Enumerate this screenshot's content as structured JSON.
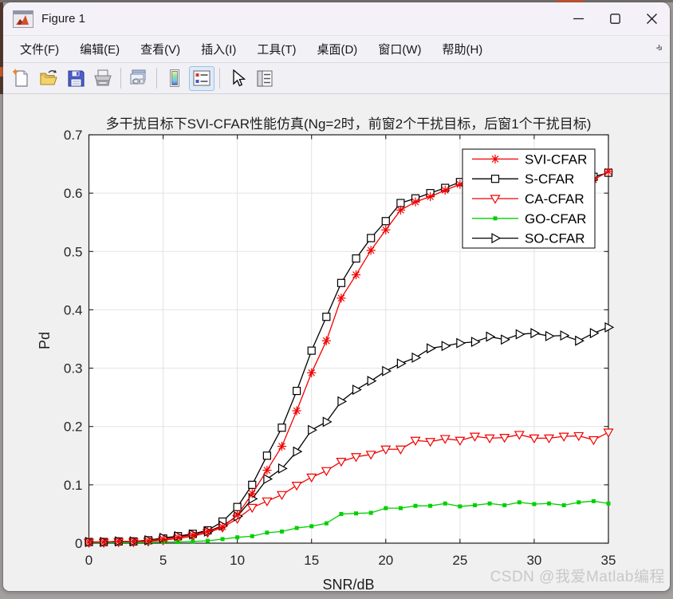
{
  "window": {
    "title": "Figure 1",
    "controls": [
      {
        "name": "minimize"
      },
      {
        "name": "maximize"
      },
      {
        "name": "close"
      }
    ]
  },
  "menu": {
    "items": [
      {
        "label": "文件(F)"
      },
      {
        "label": "编辑(E)"
      },
      {
        "label": "查看(V)"
      },
      {
        "label": "插入(I)"
      },
      {
        "label": "工具(T)"
      },
      {
        "label": "桌面(D)"
      },
      {
        "label": "窗口(W)"
      },
      {
        "label": "帮助(H)"
      }
    ],
    "overflow_icon": "»"
  },
  "toolbar": {
    "icons": [
      "new-figure",
      "open-file",
      "save-figure",
      "print-figure",
      "link-plot",
      "insert-colorbar",
      "insert-legend",
      "edit-plot",
      "property-inspector"
    ],
    "active_icon": "insert-legend"
  },
  "figure": {
    "watermark": "CSDN @我爱Matlab编程"
  },
  "chart_data": {
    "type": "line",
    "title": "多干扰目标下SVI-CFAR性能仿真(Ng=2时，前窗2个干扰目标，后窗1个干扰目标)",
    "xlabel": "SNR/dB",
    "ylabel": "Pd",
    "xlim": [
      0,
      35
    ],
    "ylim": [
      0,
      0.7
    ],
    "xticks": [
      0,
      5,
      10,
      15,
      20,
      25,
      30,
      35
    ],
    "yticks": [
      0,
      0.1,
      0.2,
      0.3,
      0.4,
      0.5,
      0.6,
      0.7
    ],
    "grid": true,
    "legend_position": "top-right-inside",
    "x": [
      0,
      1,
      2,
      3,
      4,
      5,
      6,
      7,
      8,
      9,
      10,
      11,
      12,
      13,
      14,
      15,
      16,
      17,
      18,
      19,
      20,
      21,
      22,
      23,
      24,
      25,
      26,
      27,
      28,
      29,
      30,
      31,
      32,
      33,
      34,
      35
    ],
    "series": [
      {
        "name": "SVI-CFAR",
        "color": "#f20000",
        "marker": "asterisk",
        "values": [
          0.002,
          0.002,
          0.003,
          0.003,
          0.004,
          0.007,
          0.01,
          0.014,
          0.02,
          0.028,
          0.048,
          0.085,
          0.125,
          0.166,
          0.227,
          0.292,
          0.347,
          0.42,
          0.46,
          0.502,
          0.537,
          0.571,
          0.585,
          0.594,
          0.605,
          0.615,
          0.62,
          0.623,
          0.625,
          0.627,
          0.629,
          0.63,
          0.631,
          0.628,
          0.623,
          0.637
        ]
      },
      {
        "name": "S-CFAR",
        "color": "#000000",
        "marker": "square-open",
        "values": [
          0.002,
          0.002,
          0.003,
          0.003,
          0.005,
          0.008,
          0.012,
          0.016,
          0.022,
          0.037,
          0.062,
          0.1,
          0.15,
          0.198,
          0.261,
          0.33,
          0.388,
          0.446,
          0.488,
          0.523,
          0.552,
          0.583,
          0.591,
          0.6,
          0.609,
          0.619,
          0.622,
          0.625,
          0.627,
          0.629,
          0.631,
          0.632,
          0.632,
          0.63,
          0.628,
          0.635
        ]
      },
      {
        "name": "CA-CFAR",
        "color": "#f20000",
        "marker": "triangle-down-open",
        "values": [
          0.001,
          0.001,
          0.002,
          0.002,
          0.003,
          0.005,
          0.008,
          0.012,
          0.018,
          0.027,
          0.042,
          0.061,
          0.072,
          0.083,
          0.099,
          0.113,
          0.124,
          0.14,
          0.148,
          0.152,
          0.161,
          0.161,
          0.176,
          0.174,
          0.179,
          0.176,
          0.183,
          0.18,
          0.181,
          0.186,
          0.18,
          0.18,
          0.183,
          0.184,
          0.177,
          0.19
        ]
      },
      {
        "name": "GO-CFAR",
        "color": "#00d000",
        "marker": "square-filled",
        "values": [
          0.001,
          0.001,
          0.001,
          0.001,
          0.001,
          0.002,
          0.002,
          0.003,
          0.004,
          0.007,
          0.01,
          0.012,
          0.018,
          0.02,
          0.026,
          0.029,
          0.034,
          0.05,
          0.051,
          0.052,
          0.06,
          0.06,
          0.064,
          0.064,
          0.068,
          0.063,
          0.065,
          0.068,
          0.065,
          0.07,
          0.067,
          0.068,
          0.065,
          0.07,
          0.072,
          0.068
        ]
      },
      {
        "name": "SO-CFAR",
        "color": "#000000",
        "marker": "triangle-right-open",
        "values": [
          0.002,
          0.002,
          0.003,
          0.003,
          0.005,
          0.009,
          0.012,
          0.015,
          0.02,
          0.03,
          0.046,
          0.076,
          0.11,
          0.128,
          0.157,
          0.194,
          0.208,
          0.243,
          0.263,
          0.278,
          0.295,
          0.308,
          0.318,
          0.334,
          0.338,
          0.343,
          0.345,
          0.354,
          0.349,
          0.358,
          0.36,
          0.355,
          0.356,
          0.347,
          0.36,
          0.37
        ]
      }
    ]
  }
}
